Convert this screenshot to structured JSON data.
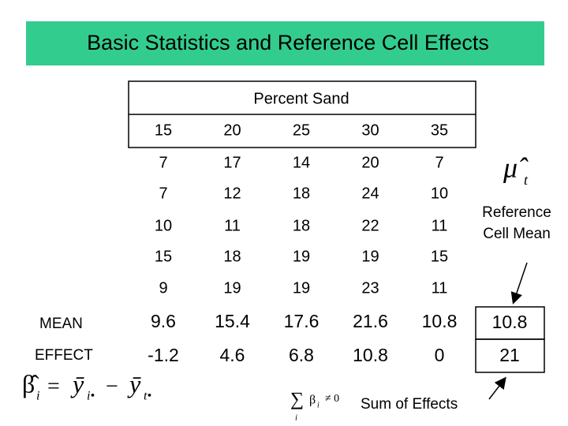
{
  "title": "Basic Statistics and Reference Cell Effects",
  "table": {
    "caption": "Percent Sand",
    "columns": [
      15,
      20,
      25,
      30,
      35
    ],
    "rows": [
      [
        7,
        17,
        14,
        20,
        7
      ],
      [
        7,
        12,
        18,
        24,
        10
      ],
      [
        10,
        11,
        18,
        22,
        11
      ],
      [
        15,
        18,
        19,
        19,
        15
      ],
      [
        9,
        19,
        19,
        23,
        11
      ]
    ],
    "summary": [
      {
        "label": "MEAN",
        "values": [
          9.6,
          15.4,
          17.6,
          21.6,
          10.8
        ],
        "reference": 10.8
      },
      {
        "label": "EFFECT",
        "values": [
          -1.2,
          4.6,
          6.8,
          10.8,
          0
        ],
        "reference": 21
      }
    ]
  },
  "reference_label": [
    "Reference",
    "Cell Mean"
  ],
  "sum_label": "Sum of Effects",
  "formulas": {
    "mu": [
      "μ̂",
      "t"
    ],
    "beta": [
      "β̂",
      "i",
      "=",
      "ȳ",
      "i•",
      "−",
      "ȳ",
      "t•"
    ],
    "sum": [
      "∑",
      "i",
      "β",
      "i",
      "≠ 0"
    ]
  }
}
